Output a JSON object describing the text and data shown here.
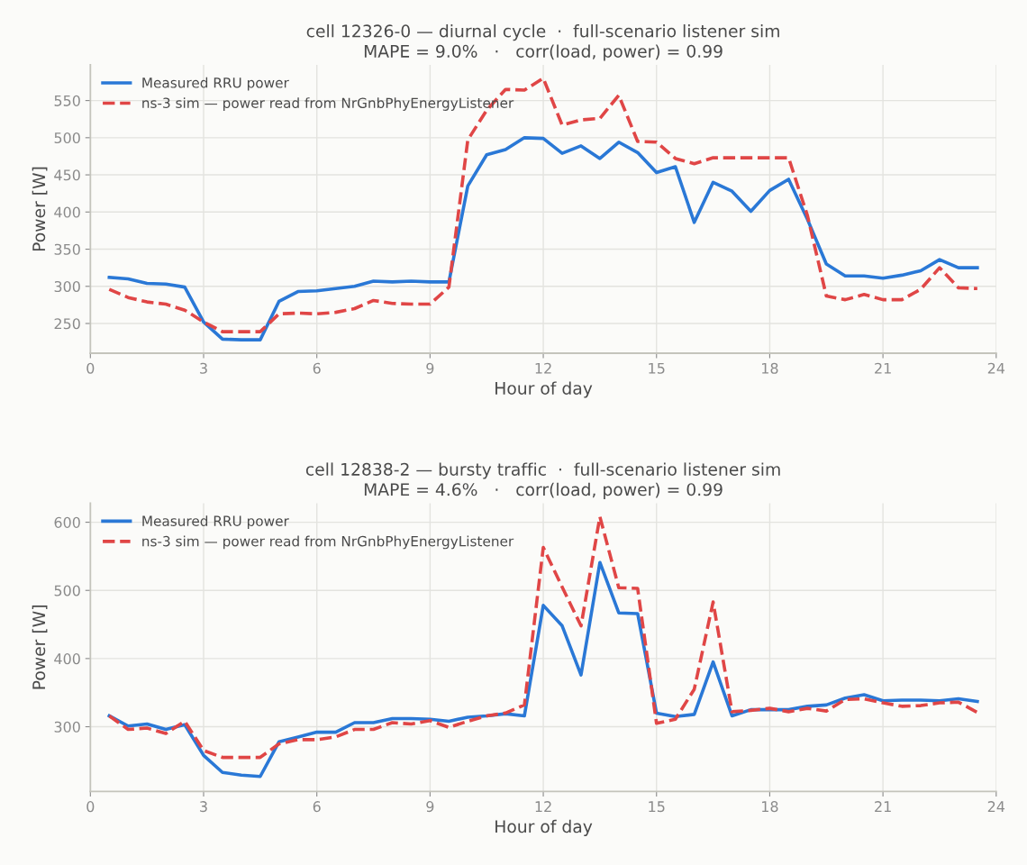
{
  "chart_data": [
    {
      "type": "line",
      "title": "cell 12326-0 — diurnal cycle  ·  full-scenario listener sim\nMAPE = 9.0%   ·   corr(load, power) = 0.99",
      "xlabel": "Hour of day",
      "ylabel": "Power [W]",
      "x": [
        0.5,
        1,
        1.5,
        2,
        2.5,
        3,
        3.5,
        4,
        4.5,
        5,
        5.5,
        6,
        6.5,
        7,
        7.5,
        8,
        8.5,
        9,
        9.5,
        10,
        10.5,
        11,
        11.5,
        12,
        12.5,
        13,
        13.5,
        14,
        14.5,
        15,
        15.5,
        16,
        16.5,
        17,
        17.5,
        18,
        18.5,
        19,
        19.5,
        20,
        20.5,
        21,
        21.5,
        22,
        22.5,
        23,
        23.5
      ],
      "series": [
        {
          "name": "Measured RRU power",
          "color": "#2a78d6",
          "line_style": "solid",
          "values": [
            312,
            310,
            304,
            303,
            299,
            252,
            229,
            228,
            228,
            280,
            293,
            294,
            297,
            300,
            307,
            306,
            307,
            306,
            306,
            435,
            477,
            484,
            500,
            499,
            479,
            489,
            472,
            494,
            480,
            453,
            461,
            386,
            440,
            428,
            401,
            429,
            444,
            390,
            330,
            314,
            314,
            311,
            315,
            321,
            336,
            325,
            325
          ]
        },
        {
          "name": "ns-3 sim — power read from NrGnbPhyEnergyListener",
          "color": "#e04646",
          "line_style": "dashed",
          "values": [
            296,
            285,
            279,
            276,
            268,
            252,
            239,
            239,
            239,
            263,
            264,
            263,
            265,
            270,
            281,
            277,
            276,
            276,
            299,
            497,
            537,
            565,
            564,
            580,
            517,
            524,
            526,
            557,
            495,
            494,
            472,
            465,
            473,
            473,
            473,
            473,
            473,
            395,
            287,
            282,
            289,
            282,
            282,
            296,
            325,
            298,
            297
          ]
        }
      ],
      "xlim": [
        0,
        24
      ],
      "xticks": [
        0,
        3,
        6,
        9,
        12,
        15,
        18,
        21,
        24
      ],
      "ylim": [
        210,
        598
      ],
      "yticks": [
        250,
        300,
        350,
        400,
        450,
        500,
        550
      ],
      "grid": true,
      "legend": "top left"
    },
    {
      "type": "line",
      "title": "cell 12838-2 — bursty traffic  ·  full-scenario listener sim\nMAPE = 4.6%   ·   corr(load, power) = 0.99",
      "xlabel": "Hour of day",
      "ylabel": "Power [W]",
      "x": [
        0.5,
        1,
        1.5,
        2,
        2.5,
        3,
        3.5,
        4,
        4.5,
        5,
        5.5,
        6,
        6.5,
        7,
        7.5,
        8,
        8.5,
        9,
        9.5,
        10,
        10.5,
        11,
        11.5,
        12,
        12.5,
        13,
        13.5,
        14,
        14.5,
        15,
        15.5,
        16,
        16.5,
        17,
        17.5,
        18,
        18.5,
        19,
        19.5,
        20,
        20.5,
        21,
        21.5,
        22,
        22.5,
        23,
        23.5
      ],
      "series": [
        {
          "name": "Measured RRU power",
          "color": "#2a78d6",
          "line_style": "solid",
          "values": [
            316,
            301,
            304,
            296,
            303,
            258,
            233,
            229,
            227,
            278,
            285,
            292,
            292,
            306,
            306,
            312,
            312,
            311,
            308,
            314,
            316,
            319,
            316,
            478,
            448,
            376,
            541,
            467,
            466,
            320,
            315,
            318,
            395,
            316,
            325,
            325,
            325,
            330,
            332,
            342,
            347,
            338,
            339,
            339,
            338,
            341,
            337
          ]
        },
        {
          "name": "ns-3 sim — power read from NrGnbPhyEnergyListener",
          "color": "#e04646",
          "line_style": "dashed",
          "values": [
            316,
            296,
            298,
            290,
            308,
            265,
            255,
            255,
            255,
            275,
            281,
            281,
            285,
            296,
            296,
            306,
            304,
            309,
            299,
            308,
            316,
            320,
            332,
            563,
            505,
            448,
            608,
            504,
            503,
            305,
            311,
            355,
            483,
            322,
            324,
            327,
            322,
            327,
            323,
            340,
            341,
            335,
            330,
            331,
            335,
            336,
            321
          ]
        }
      ],
      "xlim": [
        0,
        24
      ],
      "xticks": [
        0,
        3,
        6,
        9,
        12,
        15,
        18,
        21,
        24
      ],
      "ylim": [
        205,
        628
      ],
      "yticks": [
        300,
        400,
        500,
        600
      ],
      "grid": true,
      "legend": "top left"
    }
  ]
}
